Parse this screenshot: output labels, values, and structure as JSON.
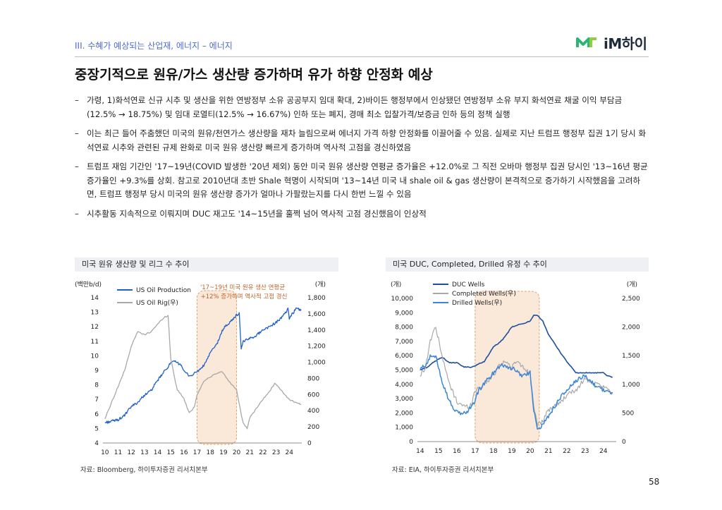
{
  "header": {
    "section": "III. 수혜가 예상되는 산업재, 에너지 – 에너지",
    "logo_text": "iM하이",
    "title": "중장기적으로 원유/가스 생산량 증가하며 유가 하향 안정화 예상"
  },
  "bullets": [
    "가령, 1)화석연료 신규 시추 및 생산을 위한 연방정부 소유 공공부지 임대 확대, 2)바이든 행정부에서 인상됐던 연방정부 소유 부지 화석연료 채굴 이익 부담금(12.5% → 18.75%) 및 임대 로열티(12.5% → 16.67%) 인하 또는 폐지, 경매 최소 입찰가격/보증금 인하 등의 정책 실행",
    "이는 최근 들어 주춤했던 미국의 원유/천연가스 생산량을 재차 늘림으로써 에너지 가격 하향 안정화를 이끌어줄 수 있음. 실제로 지난 트럼프 행정부 집권 1기 당시 화석연료 시추와 관련된 규제 완화로 미국 원유 생산량 빠르게 증가하며 역사적 고점을 경신하였음",
    "트럼프 재임 기간인 '17~19년(COVID 발생한 '20년 제외) 동안 미국 원유 생산량 연평균 증가율은 +12.0%로 그 직전 오바마 행정부 집권 당시인 '13~16년 평균 증가율인 +9.3%를 상회. 참고로 2010년대 초반 Shale 혁명이 시작되며 '13~14년 미국 내 shale oil & gas 생산량이 본격적으로 증가하기 시작했음을 고려하면, 트럼프 행정부 당시 미국의 원유 생산량 증가가 얼마나 가팔랐는지를 다시 한번 느낄 수 있음",
    "시추활동 지속적으로 이뤄지며 DUC 재고도 '14~15년을 훌쩍 넘어 역사적 고점 경신했음이 인상적"
  ],
  "left_chart": {
    "panel_title": "미국 원유 생산량 및 리그 수 추이",
    "source": "자료: Bloomberg, 하이투자증권 리서치본부",
    "annotation": [
      "'17~19년 미국 원유 생산 연평균",
      "+12% 증가하며 역사적 고점 경신"
    ]
  },
  "right_chart": {
    "panel_title": "미국 DUC, Completed, Drilled 유정 수 추이",
    "source": "자료: EIA, 하이투자증권 리서치본부"
  },
  "page_number": "58",
  "colors": {
    "accent": "#4f6bd6",
    "oil": "#1f5fc9",
    "rig": "#a8a8a8",
    "duc": "#1d4f9c",
    "drilled": "#3b86d9",
    "highlight": "#f8dcc3"
  },
  "chart_data": [
    {
      "type": "line",
      "title": "미국 원유 생산량 및 리그 수 추이",
      "ylabel": "(백만b/d)",
      "y2label": "(개)",
      "x_ticks": [
        "10",
        "11",
        "12",
        "13",
        "14",
        "15",
        "16",
        "17",
        "18",
        "19",
        "20",
        "21",
        "22",
        "23",
        "24"
      ],
      "ylim": [
        4,
        14
      ],
      "y_ticks": [
        "4",
        "5",
        "6",
        "7",
        "8",
        "9",
        "10",
        "11",
        "12",
        "13",
        "14"
      ],
      "y2lim": [
        0,
        1800
      ],
      "y2_ticks": [
        "0",
        "200",
        "400",
        "600",
        "800",
        "1,000",
        "1,200",
        "1,400",
        "1,600",
        "1,800"
      ],
      "highlight": [
        2017,
        2020
      ],
      "series": [
        {
          "name": "US Oil Production",
          "axis": "left",
          "x": [
            2010,
            2010.5,
            2011,
            2011.5,
            2012,
            2012.5,
            2013,
            2013.5,
            2014,
            2014.5,
            2015,
            2015.3,
            2015.8,
            2016,
            2016.5,
            2016.8,
            2017,
            2017.5,
            2018,
            2018.5,
            2019,
            2019.5,
            2020,
            2020.2,
            2020.35,
            2020.5,
            2020.8,
            2021,
            2021.5,
            2022,
            2022.5,
            2023,
            2023.5,
            2023.9,
            2024,
            2024.5,
            2024.9
          ],
          "values": [
            5.4,
            5.5,
            5.6,
            5.9,
            6.5,
            6.8,
            7.3,
            7.6,
            8.3,
            8.9,
            9.5,
            9.6,
            9.4,
            8.9,
            8.6,
            8.8,
            8.9,
            9.3,
            10.2,
            10.8,
            11.9,
            12.3,
            12.8,
            12.9,
            10.5,
            11.0,
            11.1,
            11.2,
            11.4,
            11.8,
            12.0,
            12.3,
            12.7,
            13.2,
            12.6,
            13.2,
            13.2
          ]
        },
        {
          "name": "US Oil Rig(우)",
          "axis": "right",
          "x": [
            2010,
            2010.5,
            2011,
            2011.5,
            2012,
            2012.5,
            2013,
            2013.5,
            2014,
            2014.5,
            2014.8,
            2015,
            2015.3,
            2015.5,
            2016,
            2016.4,
            2016.8,
            2017,
            2017.5,
            2018,
            2018.5,
            2018.9,
            2019,
            2019.5,
            2020,
            2020.3,
            2020.5,
            2020.8,
            2021,
            2021.5,
            2022,
            2022.5,
            2022.9,
            2023,
            2023.5,
            2024,
            2024.5,
            2024.9
          ],
          "values": [
            300,
            500,
            700,
            900,
            1200,
            1380,
            1340,
            1380,
            1470,
            1560,
            1575,
            1050,
            800,
            660,
            550,
            370,
            450,
            600,
            760,
            820,
            860,
            885,
            860,
            750,
            660,
            400,
            240,
            180,
            310,
            430,
            540,
            640,
            740,
            720,
            630,
            540,
            500,
            480
          ]
        }
      ]
    },
    {
      "type": "line",
      "title": "미국 DUC, Completed, Drilled 유정 수 추이",
      "ylabel": "(개)",
      "y2label": "(개)",
      "x_ticks": [
        "14",
        "15",
        "16",
        "17",
        "18",
        "19",
        "20",
        "21",
        "22",
        "23",
        "24"
      ],
      "ylim": [
        0,
        10000
      ],
      "y_ticks": [
        "0",
        "1,000",
        "2,000",
        "3,000",
        "4,000",
        "5,000",
        "6,000",
        "7,000",
        "8,000",
        "9,000",
        "10,000"
      ],
      "y2lim": [
        0,
        2500
      ],
      "y2_ticks": [
        "0",
        "500",
        "1,000",
        "1,500",
        "2,000",
        "2,500"
      ],
      "highlight": [
        2017,
        2020.5
      ],
      "series": [
        {
          "name": "DUC Wells",
          "axis": "left",
          "x": [
            2014,
            2014.4,
            2014.8,
            2015.2,
            2015.6,
            2016,
            2016.4,
            2016.8,
            2017,
            2017.5,
            2018,
            2018.5,
            2019,
            2019.5,
            2020,
            2020.2,
            2020.4,
            2020.7,
            2021,
            2021.5,
            2022,
            2022.5,
            2023,
            2023.5,
            2024,
            2024.2,
            2024.5
          ],
          "values": [
            5000,
            5200,
            5600,
            5900,
            5500,
            5500,
            5200,
            5200,
            5300,
            5600,
            6600,
            7100,
            8000,
            8200,
            8400,
            8800,
            8800,
            8400,
            7500,
            6500,
            5600,
            4800,
            4800,
            4800,
            4800,
            4600,
            4500
          ]
        },
        {
          "name": "Completed Wells(우)",
          "axis": "right",
          "x": [
            2014,
            2014.3,
            2014.5,
            2014.8,
            2015,
            2015.3,
            2015.6,
            2016,
            2016.5,
            2016.8,
            2017,
            2017.5,
            2018,
            2018.3,
            2018.6,
            2019,
            2019.3,
            2019.6,
            2020,
            2020.2,
            2020.4,
            2020.6,
            2021,
            2021.5,
            2022,
            2022.5,
            2023,
            2023.5,
            2024,
            2024.5
          ],
          "values": [
            1150,
            1300,
            1700,
            2000,
            1800,
            1350,
            1000,
            700,
            600,
            650,
            900,
            1000,
            1150,
            1350,
            1400,
            1300,
            1400,
            1300,
            1200,
            650,
            300,
            300,
            550,
            650,
            800,
            900,
            1100,
            1000,
            950,
            850
          ]
        },
        {
          "name": "Drilled Wells(우)",
          "axis": "right",
          "x": [
            2014,
            2014.3,
            2014.6,
            2014.9,
            2015.2,
            2015.6,
            2016,
            2016.5,
            2016.9,
            2017.2,
            2017.6,
            2018,
            2018.4,
            2018.8,
            2019.2,
            2019.6,
            2020,
            2020.2,
            2020.4,
            2020.7,
            2021,
            2021.5,
            2022,
            2022.5,
            2023,
            2023.5,
            2024,
            2024.5
          ],
          "values": [
            1250,
            1350,
            1500,
            1450,
            1050,
            700,
            500,
            500,
            650,
            900,
            1050,
            1200,
            1350,
            1300,
            1250,
            1150,
            1200,
            550,
            250,
            280,
            450,
            700,
            900,
            1050,
            1150,
            1000,
            900,
            850
          ]
        }
      ]
    }
  ]
}
